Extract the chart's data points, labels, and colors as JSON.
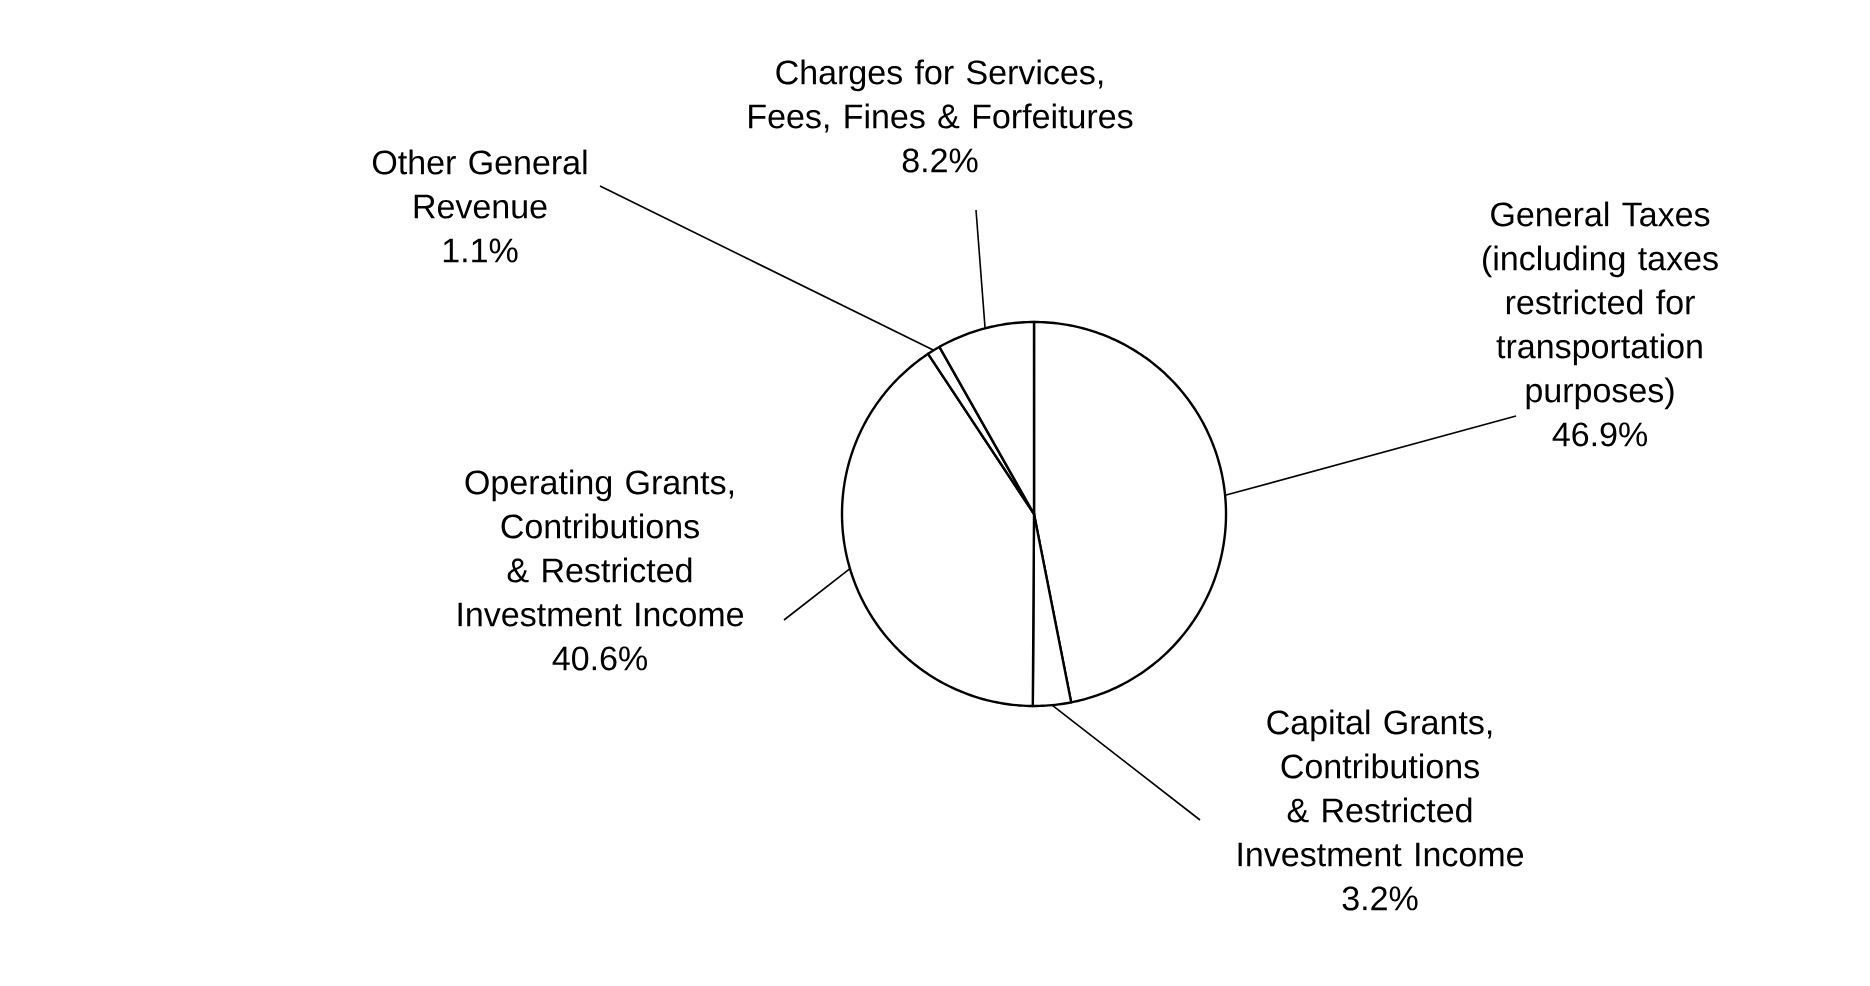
{
  "chart_data": {
    "type": "pie",
    "categories": [
      "General Taxes (including taxes restricted for transportation purposes)",
      "Capital Grants, Contributions & Restricted Investment Income",
      "Operating Grants, Contributions & Restricted Investment Income",
      "Other General Revenue",
      "Charges for Services, Fees, Fines & Forfeitures"
    ],
    "values": [
      46.9,
      3.2,
      40.6,
      1.1,
      8.2
    ],
    "value_labels": [
      "46.9%",
      "3.2%",
      "40.6%",
      "1.1%",
      "8.2%"
    ],
    "colors": [
      "#ffffff",
      "#ffffff",
      "#ffffff",
      "#ffffff",
      "#ffffff"
    ]
  }
}
